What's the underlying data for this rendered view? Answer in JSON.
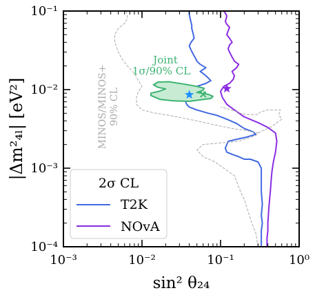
{
  "chart_data": {
    "type": "line",
    "xscale": "log",
    "yscale": "log",
    "xlim": [
      0.001,
      1
    ],
    "ylim": [
      0.0001,
      0.1
    ],
    "xlabel": "sin² θ₂₄",
    "ylabel_main": "|Δm²₄ₗ| [eV²]",
    "xticks": [
      {
        "value": 0.001,
        "label": "10⁻³"
      },
      {
        "value": 0.01,
        "label": "10⁻²"
      },
      {
        "value": 0.1,
        "label": "10⁻¹"
      },
      {
        "value": 1,
        "label": "10⁰"
      }
    ],
    "yticks": [
      {
        "value": 0.0001,
        "label": "10⁻⁴"
      },
      {
        "value": 0.001,
        "label": "10⁻³"
      },
      {
        "value": 0.01,
        "label": "10⁻²"
      },
      {
        "value": 0.1,
        "label": "10⁻¹"
      }
    ],
    "legend": {
      "title": "2σ CL",
      "position": "lower-left",
      "entries": [
        {
          "name": "T2K",
          "color": "#4169e1"
        },
        {
          "name": "NOvA",
          "color": "#8a2be2"
        }
      ]
    },
    "annotations": {
      "minos_line1": "MINOS/MINOS+",
      "minos_line2": "90% CL",
      "joint_line1": "Joint",
      "joint_line2": "1σ/90% CL"
    },
    "colors": {
      "t2k": "#4169e1",
      "nova": "#8a2be2",
      "joint": "#3cb371",
      "joint_fill": "#c7ebd3",
      "minos": "#a9a9a9",
      "best_fit_t2k": "#1e90ff"
    },
    "series": [
      {
        "name": "T2K",
        "points": [
          [
            0.33,
            0.0001
          ],
          [
            0.33,
            0.00013
          ],
          [
            0.33,
            0.00016
          ],
          [
            0.34,
            0.0002
          ],
          [
            0.33,
            0.00025
          ],
          [
            0.34,
            0.00035
          ],
          [
            0.33,
            0.0005
          ],
          [
            0.33,
            0.0007
          ],
          [
            0.33,
            0.001
          ],
          [
            0.3,
            0.0012
          ],
          [
            0.24,
            0.0013
          ],
          [
            0.2,
            0.0013
          ],
          [
            0.17,
            0.0014
          ],
          [
            0.14,
            0.0015
          ],
          [
            0.12,
            0.0016
          ],
          [
            0.115,
            0.0018
          ],
          [
            0.12,
            0.002
          ],
          [
            0.125,
            0.0022
          ],
          [
            0.22,
            0.0025
          ],
          [
            0.28,
            0.0027
          ],
          [
            0.26,
            0.0029
          ],
          [
            0.2,
            0.0032
          ],
          [
            0.16,
            0.0037
          ],
          [
            0.12,
            0.0042
          ],
          [
            0.09,
            0.0047
          ],
          [
            0.07,
            0.005
          ],
          [
            0.05,
            0.0055
          ],
          [
            0.04,
            0.006
          ],
          [
            0.037,
            0.0065
          ],
          [
            0.036,
            0.007
          ],
          [
            0.038,
            0.008
          ],
          [
            0.039,
            0.0088
          ],
          [
            0.04,
            0.0096
          ],
          [
            0.045,
            0.01
          ],
          [
            0.05,
            0.011
          ],
          [
            0.065,
            0.012
          ],
          [
            0.07,
            0.0125
          ],
          [
            0.075,
            0.013
          ],
          [
            0.07,
            0.014
          ],
          [
            0.065,
            0.015
          ],
          [
            0.06,
            0.016
          ],
          [
            0.055,
            0.017
          ],
          [
            0.06,
            0.018
          ],
          [
            0.065,
            0.019
          ],
          [
            0.055,
            0.021
          ],
          [
            0.05,
            0.023
          ],
          [
            0.048,
            0.025
          ],
          [
            0.045,
            0.028
          ],
          [
            0.042,
            0.032
          ],
          [
            0.04,
            0.036
          ],
          [
            0.042,
            0.04
          ],
          [
            0.046,
            0.045
          ],
          [
            0.045,
            0.05
          ],
          [
            0.044,
            0.055
          ],
          [
            0.043,
            0.06
          ],
          [
            0.043,
            0.066
          ],
          [
            0.042,
            0.072
          ],
          [
            0.041,
            0.08
          ],
          [
            0.04,
            0.09
          ],
          [
            0.04,
            0.1
          ]
        ]
      },
      {
        "name": "NOvA",
        "points": [
          [
            0.39,
            0.0001
          ],
          [
            0.39,
            0.00013
          ],
          [
            0.4,
            0.00016
          ],
          [
            0.4,
            0.0002
          ],
          [
            0.41,
            0.0003
          ],
          [
            0.42,
            0.0004
          ],
          [
            0.43,
            0.0005
          ],
          [
            0.44,
            0.0007
          ],
          [
            0.45,
            0.0009
          ],
          [
            0.47,
            0.0012
          ],
          [
            0.5,
            0.0016
          ],
          [
            0.52,
            0.0022
          ],
          [
            0.5,
            0.0028
          ],
          [
            0.4,
            0.0033
          ],
          [
            0.3,
            0.0038
          ],
          [
            0.2,
            0.0045
          ],
          [
            0.15,
            0.0055
          ],
          [
            0.12,
            0.0065
          ],
          [
            0.105,
            0.008
          ],
          [
            0.1,
            0.0095
          ],
          [
            0.11,
            0.011
          ],
          [
            0.13,
            0.012
          ],
          [
            0.145,
            0.0135
          ],
          [
            0.15,
            0.015
          ],
          [
            0.14,
            0.017
          ],
          [
            0.16,
            0.019
          ],
          [
            0.17,
            0.021
          ],
          [
            0.15,
            0.023
          ],
          [
            0.14,
            0.026
          ],
          [
            0.13,
            0.03
          ],
          [
            0.125,
            0.033
          ],
          [
            0.13,
            0.037
          ],
          [
            0.14,
            0.04
          ],
          [
            0.13,
            0.045
          ],
          [
            0.12,
            0.05
          ],
          [
            0.125,
            0.056
          ],
          [
            0.13,
            0.062
          ],
          [
            0.12,
            0.068
          ],
          [
            0.115,
            0.074
          ],
          [
            0.118,
            0.08
          ],
          [
            0.12,
            0.087
          ],
          [
            0.115,
            0.094
          ],
          [
            0.11,
            0.1
          ]
        ]
      },
      {
        "name": "MINOS/MINOS+ 90% CL",
        "style": "dashed",
        "points": [
          [
            0.3,
            0.0001
          ],
          [
            0.28,
            0.00015
          ],
          [
            0.25,
            0.0002
          ],
          [
            0.22,
            0.0003
          ],
          [
            0.2,
            0.0004
          ],
          [
            0.18,
            0.0005
          ],
          [
            0.15,
            0.0008
          ],
          [
            0.11,
            0.001
          ],
          [
            0.085,
            0.0012
          ],
          [
            0.06,
            0.0014
          ],
          [
            0.05,
            0.0017
          ],
          [
            0.06,
            0.002
          ],
          [
            0.1,
            0.0021
          ],
          [
            0.17,
            0.0022
          ],
          [
            0.22,
            0.0024
          ],
          [
            0.28,
            0.0026
          ],
          [
            0.3,
            0.0028
          ],
          [
            0.22,
            0.003
          ],
          [
            0.14,
            0.0032
          ],
          [
            0.08,
            0.0036
          ],
          [
            0.05,
            0.004
          ],
          [
            0.025,
            0.0046
          ],
          [
            0.015,
            0.005
          ],
          [
            0.01,
            0.0055
          ],
          [
            0.0085,
            0.0065
          ],
          [
            0.0085,
            0.008
          ],
          [
            0.009,
            0.0095
          ],
          [
            0.01,
            0.011
          ],
          [
            0.009,
            0.013
          ],
          [
            0.008,
            0.016
          ],
          [
            0.0065,
            0.02
          ],
          [
            0.0055,
            0.025
          ],
          [
            0.005,
            0.03
          ],
          [
            0.0045,
            0.04
          ],
          [
            0.0045,
            0.05
          ],
          [
            0.005,
            0.06
          ],
          [
            0.006,
            0.07
          ],
          [
            0.0065,
            0.08
          ],
          [
            0.0065,
            0.09
          ],
          [
            0.0062,
            0.1
          ]
        ]
      },
      {
        "name": "MINOS/MINOS+ 90% CL (right branch)",
        "style": "dashed",
        "points": [
          [
            0.3,
            0.0028
          ],
          [
            0.45,
            0.0034
          ],
          [
            0.6,
            0.0042
          ],
          [
            0.55,
            0.0048
          ],
          [
            0.58,
            0.0055
          ],
          [
            0.4,
            0.0055
          ],
          [
            0.32,
            0.0052
          ],
          [
            0.3,
            0.0048
          ],
          [
            0.22,
            0.0048
          ],
          [
            0.18,
            0.005
          ],
          [
            0.13,
            0.0056
          ],
          [
            0.1,
            0.006
          ]
        ]
      },
      {
        "name": "Joint 1σ",
        "style": "dashed",
        "points": [
          [
            0.028,
            0.0082
          ],
          [
            0.04,
            0.0078
          ],
          [
            0.06,
            0.0078
          ],
          [
            0.068,
            0.0085
          ],
          [
            0.06,
            0.0095
          ],
          [
            0.04,
            0.0098
          ],
          [
            0.03,
            0.0095
          ],
          [
            0.026,
            0.009
          ],
          [
            0.028,
            0.0082
          ]
        ]
      },
      {
        "name": "Joint 90% CL",
        "style": "filled",
        "points": [
          [
            0.013,
            0.0084
          ],
          [
            0.017,
            0.0075
          ],
          [
            0.025,
            0.0072
          ],
          [
            0.04,
            0.0071
          ],
          [
            0.055,
            0.0074
          ],
          [
            0.075,
            0.0077
          ],
          [
            0.08,
            0.0082
          ],
          [
            0.07,
            0.0087
          ],
          [
            0.05,
            0.0092
          ],
          [
            0.06,
            0.0098
          ],
          [
            0.062,
            0.0104
          ],
          [
            0.05,
            0.011
          ],
          [
            0.035,
            0.0117
          ],
          [
            0.022,
            0.0126
          ],
          [
            0.016,
            0.0125
          ],
          [
            0.014,
            0.0115
          ],
          [
            0.016,
            0.0107
          ],
          [
            0.02,
            0.0102
          ],
          [
            0.017,
            0.0096
          ],
          [
            0.013,
            0.009
          ],
          [
            0.013,
            0.0084
          ]
        ]
      }
    ],
    "best_fit": [
      {
        "name": "T2K best fit",
        "x": 0.04,
        "y": 0.0086,
        "color": "#1e90ff"
      },
      {
        "name": "NOvA best fit",
        "x": 0.12,
        "y": 0.0103,
        "color": "#8a2be2"
      },
      {
        "name": "Joint best fit",
        "x": 0.06,
        "y": 0.0087,
        "color": "#3cb371"
      }
    ]
  }
}
